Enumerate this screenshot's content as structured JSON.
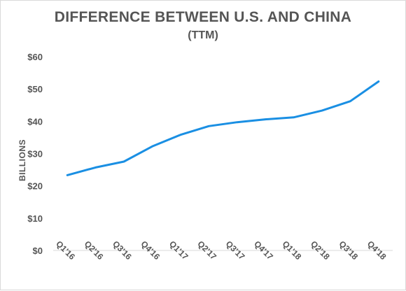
{
  "chart_data": {
    "type": "line",
    "title": "DIFFERENCE BETWEEN U.S. AND CHINA",
    "subtitle": "(TTM)",
    "xlabel": "",
    "ylabel": "BILLIONS",
    "ylim": [
      0,
      60
    ],
    "y_ticks": [
      "$0",
      "$10",
      "$20",
      "$30",
      "$40",
      "$50",
      "$60"
    ],
    "y_tick_values": [
      0,
      10,
      20,
      30,
      40,
      50,
      60
    ],
    "categories": [
      "Q1'16",
      "Q2'16",
      "Q3'16",
      "Q4'16",
      "Q1'17",
      "Q2'17",
      "Q3'17",
      "Q4'17",
      "Q1'18",
      "Q2'18",
      "Q3'18",
      "Q4'18"
    ],
    "series": [
      {
        "values": [
          23.3,
          25.7,
          27.5,
          32.2,
          35.8,
          38.5,
          39.7,
          40.6,
          41.2,
          43.3,
          46.2,
          52.3
        ],
        "color": "#1a8fe3"
      }
    ],
    "grid": false,
    "legend": "none"
  }
}
